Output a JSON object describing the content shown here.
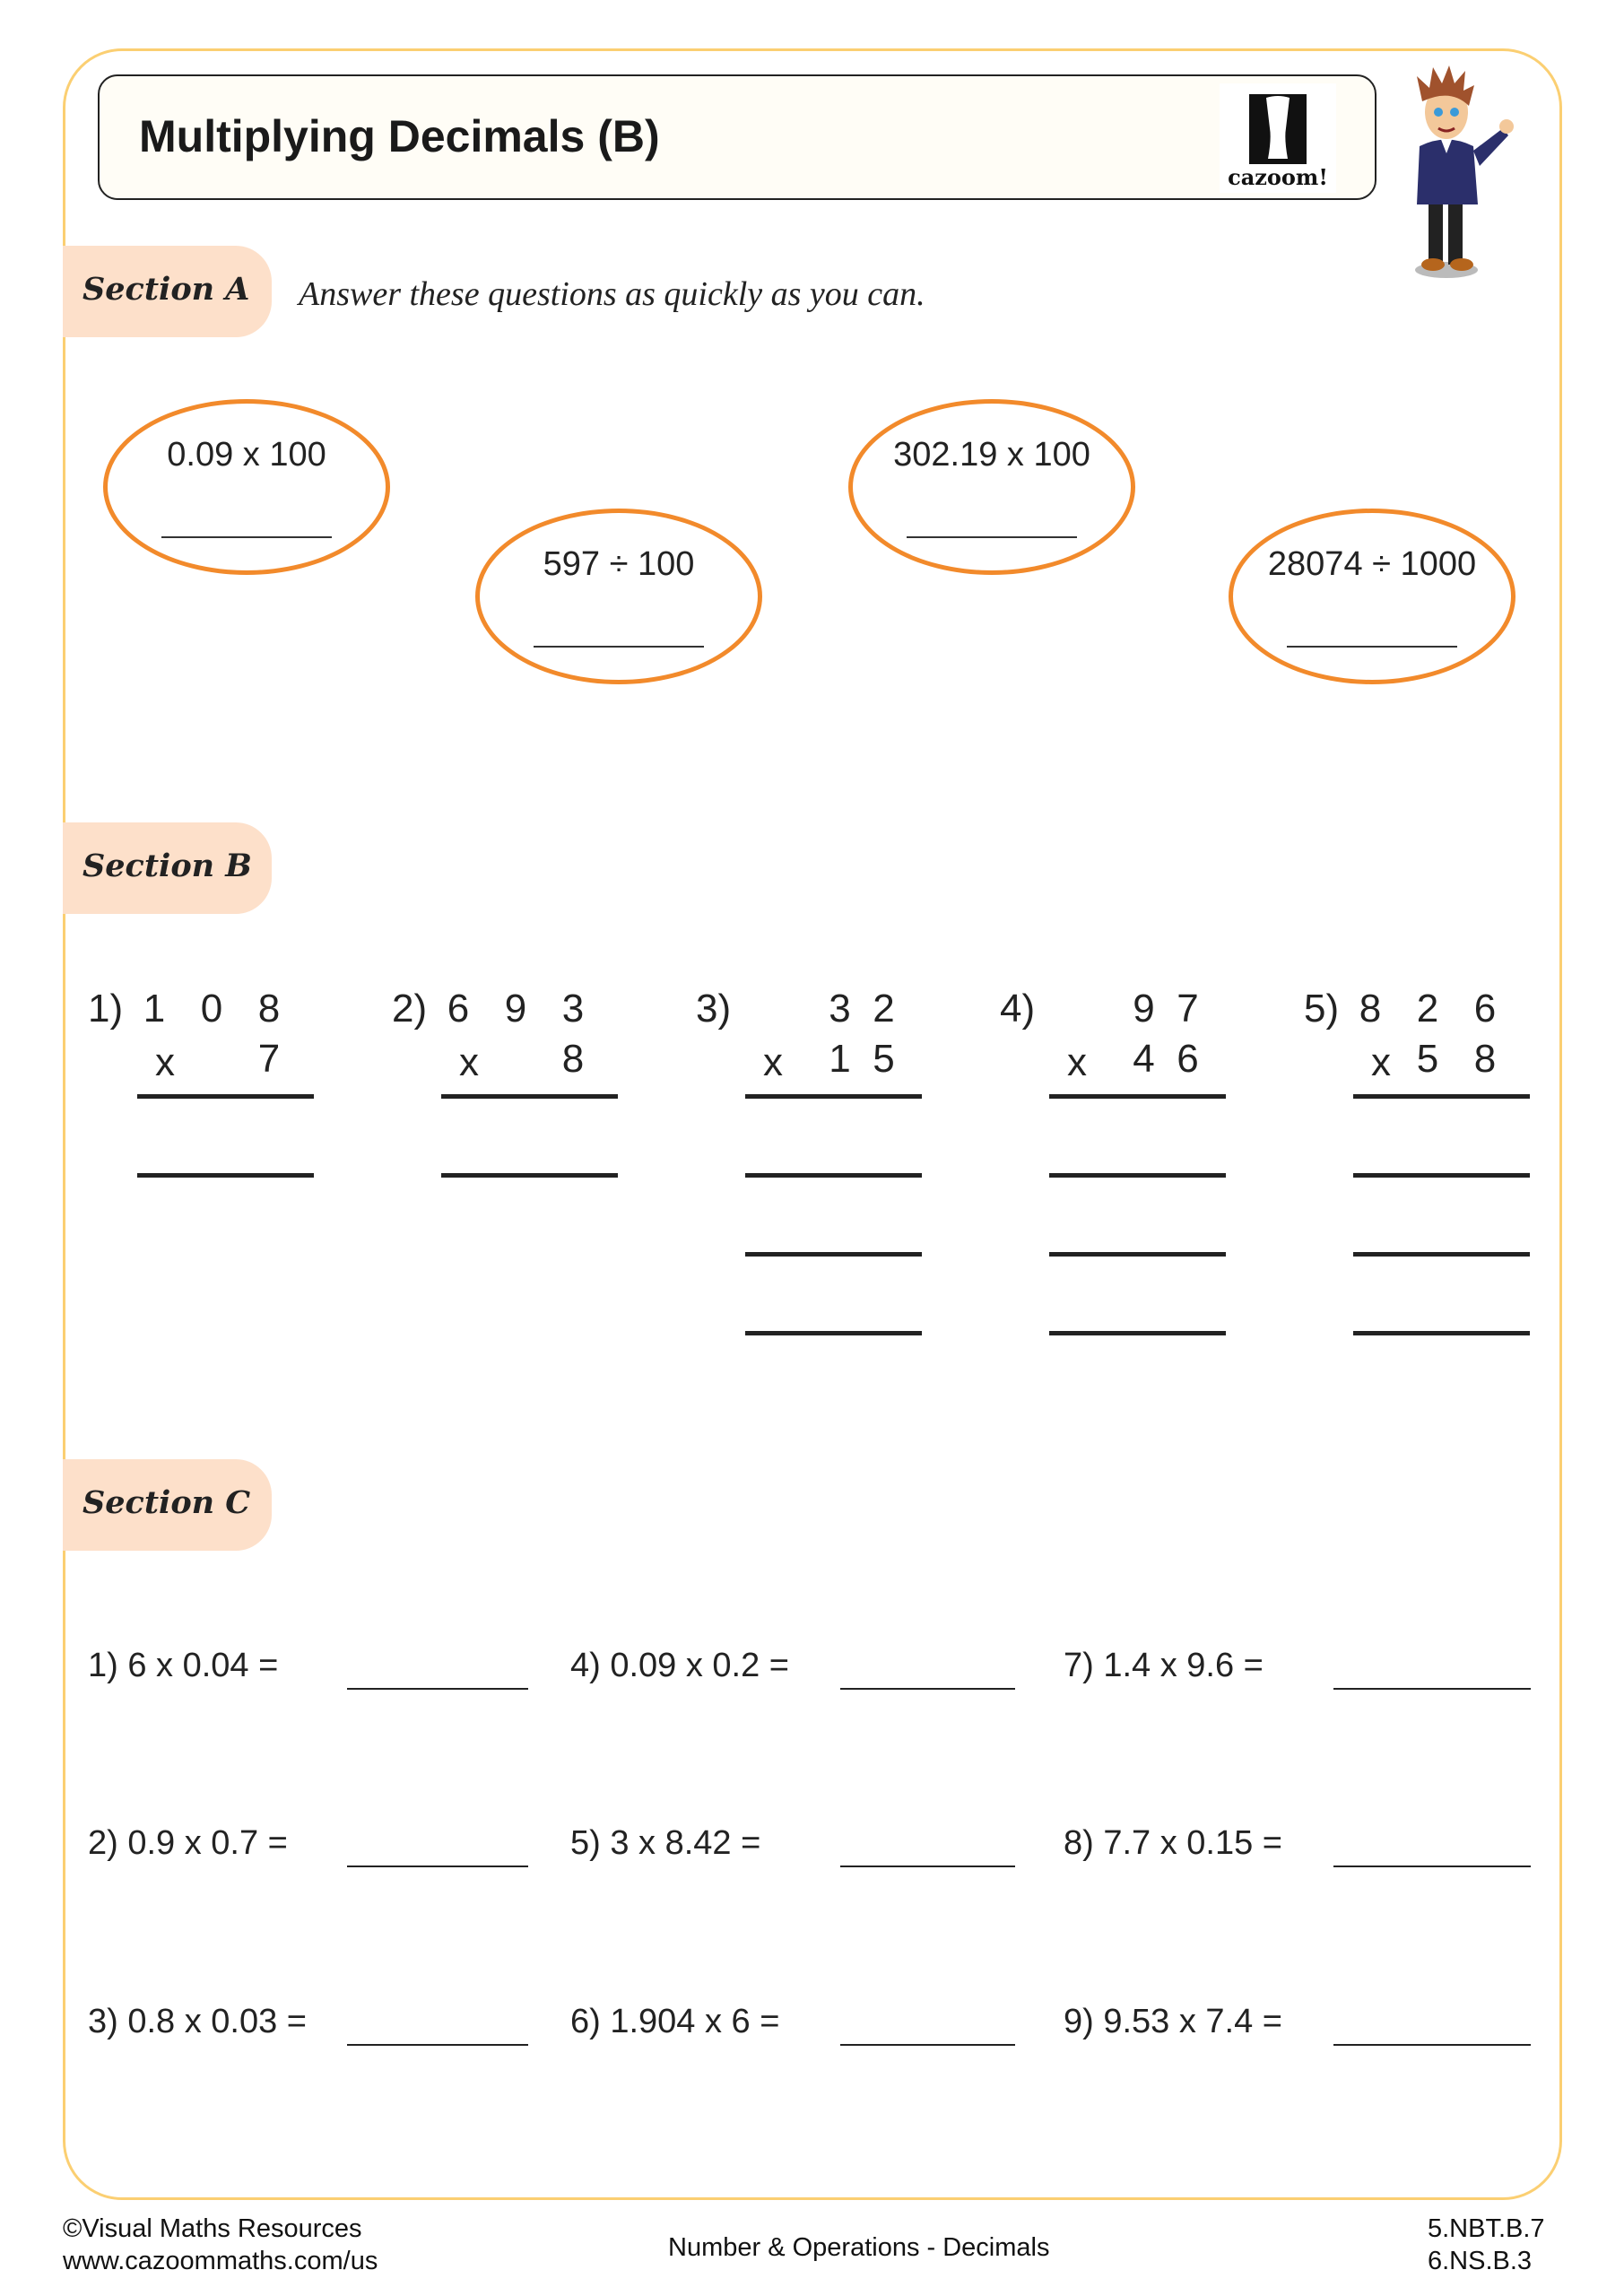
{
  "title": "Multiplying Decimals (B)",
  "logo_text": "cazoom!",
  "colors": {
    "frame": "#fbcf72",
    "tab": "#fde0ca",
    "oval": "#f28a2b"
  },
  "section_a": {
    "label": "Section A",
    "instruction": "Answer these questions as quickly as you can.",
    "questions": [
      "0.09 x 100",
      "597 ÷ 100",
      "302.19 x 100",
      "28074 ÷ 1000"
    ]
  },
  "section_b": {
    "label": "Section B",
    "problems": [
      {
        "num": "1)",
        "top": "108",
        "bottom": "7",
        "op": "x",
        "lines": 2
      },
      {
        "num": "2)",
        "top": "693",
        "bottom": "8",
        "op": "x",
        "lines": 2
      },
      {
        "num": "3)",
        "top": "32",
        "bottom": "15",
        "op": "x",
        "lines": 4
      },
      {
        "num": "4)",
        "top": "97",
        "bottom": "46",
        "op": "x",
        "lines": 4
      },
      {
        "num": "5)",
        "top": "826",
        "bottom": "58",
        "op": "x",
        "lines": 4
      }
    ]
  },
  "section_c": {
    "label": "Section C",
    "questions": [
      "1)  6 x 0.04 =",
      "2)  0.9 x 0.7 =",
      "3)  0.8 x 0.03 =",
      "4)  0.09 x 0.2 =",
      "5)  3 x 8.42 =",
      "6)  1.904 x 6 =",
      "7)  1.4 x 9.6 =",
      "8)  7.7 x 0.15 =",
      "9)  9.53 x 7.4 ="
    ]
  },
  "footer": {
    "copyright": "©Visual Maths Resources",
    "link": "www.cazoommaths.com/us",
    "topic": "Number & Operations - Decimals",
    "standards": [
      "5.NBT.B.7",
      "6.NS.B.3"
    ]
  }
}
